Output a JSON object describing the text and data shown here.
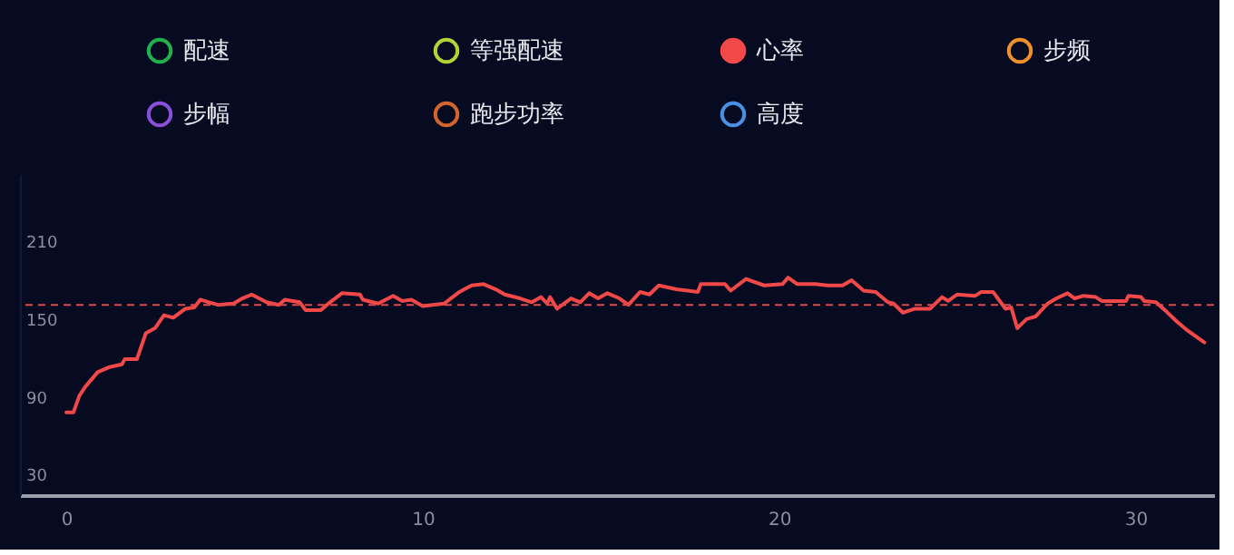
{
  "chart_data": {
    "type": "line",
    "x": [
      0,
      0.2,
      0.37,
      0.54,
      0.88,
      1.22,
      1.56,
      1.64,
      1.98,
      2.23,
      2.49,
      2.74,
      3.0,
      3.34,
      3.59,
      3.76,
      4.0,
      4.26,
      4.69,
      4.94,
      5.2,
      5.62,
      5.96,
      6.13,
      6.55,
      6.71,
      7.14,
      7.4,
      7.73,
      8.24,
      8.32,
      8.75,
      9.17,
      9.43,
      9.68,
      10.0,
      10.6,
      11.03,
      11.37,
      11.71,
      12.05,
      12.3,
      12.73,
      13.06,
      13.32,
      13.49,
      13.57,
      13.77,
      14.16,
      14.42,
      14.67,
      14.92,
      15.18,
      15.52,
      15.77,
      16.1,
      16.36,
      16.62,
      17.12,
      17.72,
      17.8,
      18.48,
      18.64,
      19.07,
      19.58,
      20.09,
      20.25,
      20.51,
      21.02,
      21.36,
      21.78,
      22.03,
      22.37,
      22.71,
      23.05,
      23.21,
      23.47,
      23.81,
      24.23,
      24.57,
      24.74,
      24.99,
      25.5,
      25.67,
      26.0,
      26.35,
      26.51,
      26.68,
      26.94,
      27.19,
      27.53,
      27.78,
      28.09,
      28.29,
      28.54,
      28.88,
      29.05,
      29.73,
      29.8,
      30.15,
      30.24,
      30.57,
      30.82,
      31.16,
      31.42,
      31.67,
      31.93
    ],
    "series": [
      {
        "name": "配速",
        "color": "#22b04a",
        "values": [
          null,
          null,
          null,
          null,
          null,
          null,
          null,
          null,
          null,
          null,
          null,
          null,
          null,
          null,
          null,
          null,
          null,
          null,
          null,
          null,
          null,
          null,
          null,
          null,
          null,
          null,
          null,
          null,
          null,
          null,
          null,
          null,
          null,
          null,
          null,
          null,
          null,
          null,
          null,
          null,
          null,
          null,
          null,
          null,
          null,
          null,
          null,
          null,
          null,
          null,
          null,
          null,
          null,
          null,
          null,
          null,
          null,
          null,
          null,
          null,
          null,
          null,
          null,
          null,
          null,
          null,
          null,
          null,
          null,
          null,
          null,
          null,
          null,
          null,
          null,
          null,
          null,
          null,
          null,
          null,
          null,
          null,
          null,
          null,
          null,
          null,
          null,
          null,
          null,
          null,
          null,
          null,
          null,
          null,
          null,
          null,
          null,
          null,
          null,
          null,
          null,
          null,
          null,
          null,
          null,
          null,
          null
        ]
      },
      {
        "name": "等强配速",
        "color": "#b5d334",
        "values": [
          null,
          null,
          null,
          null,
          null,
          null,
          null,
          null,
          null,
          null,
          null,
          null,
          null,
          null,
          null,
          null,
          null,
          null,
          null,
          null,
          null,
          null,
          null,
          null,
          null,
          null,
          null,
          null,
          null,
          null,
          null,
          null,
          null,
          null,
          null,
          null,
          null,
          null,
          null,
          null,
          null,
          null,
          null,
          null,
          null,
          null,
          null,
          null,
          null,
          null,
          null,
          null,
          null,
          null,
          null,
          null,
          null,
          null,
          null,
          null,
          null,
          null,
          null,
          null,
          null,
          null,
          null,
          null,
          null,
          null,
          null,
          null,
          null,
          null,
          null,
          null,
          null,
          null,
          null,
          null,
          null,
          null,
          null,
          null,
          null,
          null,
          null,
          null,
          null,
          null,
          null,
          null,
          null,
          null,
          null,
          null,
          null,
          null,
          null,
          null,
          null,
          null,
          null,
          null,
          null,
          null,
          null
        ]
      },
      {
        "name": "心率",
        "color": "#f24848",
        "values": [
          78,
          78,
          91,
          98,
          109,
          113,
          115,
          119,
          119,
          139,
          143,
          153,
          151,
          158,
          159,
          165,
          163,
          161,
          162,
          166,
          169,
          163,
          161,
          165,
          163,
          157,
          157,
          163,
          170,
          169,
          165,
          162,
          168,
          164,
          165,
          160,
          162,
          171,
          176,
          177,
          173,
          169,
          166,
          163,
          167,
          162,
          167,
          158,
          166,
          163,
          170,
          166,
          170,
          166,
          161,
          171,
          169,
          176,
          173,
          171,
          177,
          177,
          172,
          181,
          176,
          177,
          182,
          177,
          177,
          176,
          176,
          180,
          172,
          171,
          163,
          162,
          155,
          158,
          158,
          167,
          164,
          169,
          168,
          171,
          171,
          158,
          159,
          143,
          150,
          152,
          162,
          166,
          170,
          166,
          168,
          167,
          164,
          164,
          168,
          167,
          164,
          163,
          157,
          148,
          142,
          137,
          132
        ]
      },
      {
        "name": "步频",
        "color": "#f0902a",
        "values": [
          null,
          null,
          null,
          null,
          null,
          null,
          null,
          null,
          null,
          null,
          null,
          null,
          null,
          null,
          null,
          null,
          null,
          null,
          null,
          null,
          null,
          null,
          null,
          null,
          null,
          null,
          null,
          null,
          null,
          null,
          null,
          null,
          null,
          null,
          null,
          null,
          null,
          null,
          null,
          null,
          null,
          null,
          null,
          null,
          null,
          null,
          null,
          null,
          null,
          null,
          null,
          null,
          null,
          null,
          null,
          null,
          null,
          null,
          null,
          null,
          null,
          null,
          null,
          null,
          null,
          null,
          null,
          null,
          null,
          null,
          null,
          null,
          null,
          null,
          null,
          null,
          null,
          null,
          null,
          null,
          null,
          null,
          null,
          null,
          null,
          null,
          null,
          null,
          null,
          null,
          null,
          null,
          null,
          null,
          null,
          null,
          null,
          null,
          null,
          null,
          null,
          null,
          null,
          null,
          null,
          null,
          null
        ]
      },
      {
        "name": "步幅",
        "color": "#8a4fd8",
        "values": [
          null,
          null,
          null,
          null,
          null,
          null,
          null,
          null,
          null,
          null,
          null,
          null,
          null,
          null,
          null,
          null,
          null,
          null,
          null,
          null,
          null,
          null,
          null,
          null,
          null,
          null,
          null,
          null,
          null,
          null,
          null,
          null,
          null,
          null,
          null,
          null,
          null,
          null,
          null,
          null,
          null,
          null,
          null,
          null,
          null,
          null,
          null,
          null,
          null,
          null,
          null,
          null,
          null,
          null,
          null,
          null,
          null,
          null,
          null,
          null,
          null,
          null,
          null,
          null,
          null,
          null,
          null,
          null,
          null,
          null,
          null,
          null,
          null,
          null,
          null,
          null,
          null,
          null,
          null,
          null,
          null,
          null,
          null,
          null,
          null,
          null,
          null,
          null,
          null,
          null,
          null,
          null,
          null,
          null,
          null,
          null,
          null,
          null,
          null,
          null,
          null,
          null,
          null,
          null,
          null,
          null,
          null
        ]
      },
      {
        "name": "跑步功率",
        "color": "#d2642c",
        "values": [
          null,
          null,
          null,
          null,
          null,
          null,
          null,
          null,
          null,
          null,
          null,
          null,
          null,
          null,
          null,
          null,
          null,
          null,
          null,
          null,
          null,
          null,
          null,
          null,
          null,
          null,
          null,
          null,
          null,
          null,
          null,
          null,
          null,
          null,
          null,
          null,
          null,
          null,
          null,
          null,
          null,
          null,
          null,
          null,
          null,
          null,
          null,
          null,
          null,
          null,
          null,
          null,
          null,
          null,
          null,
          null,
          null,
          null,
          null,
          null,
          null,
          null,
          null,
          null,
          null,
          null,
          null,
          null,
          null,
          null,
          null,
          null,
          null,
          null,
          null,
          null,
          null,
          null,
          null,
          null,
          null,
          null,
          null,
          null,
          null,
          null,
          null,
          null,
          null,
          null,
          null,
          null,
          null,
          null,
          null,
          null,
          null,
          null,
          null,
          null,
          null,
          null,
          null,
          null,
          null,
          null,
          null
        ]
      },
      {
        "name": "高度",
        "color": "#4a90e2",
        "values": [
          null,
          null,
          null,
          null,
          null,
          null,
          null,
          null,
          null,
          null,
          null,
          null,
          null,
          null,
          null,
          null,
          null,
          null,
          null,
          null,
          null,
          null,
          null,
          null,
          null,
          null,
          null,
          null,
          null,
          null,
          null,
          null,
          null,
          null,
          null,
          null,
          null,
          null,
          null,
          null,
          null,
          null,
          null,
          null,
          null,
          null,
          null,
          null,
          null,
          null,
          null,
          null,
          null,
          null,
          null,
          null,
          null,
          null,
          null,
          null,
          null,
          null,
          null,
          null,
          null,
          null,
          null,
          null,
          null,
          null,
          null,
          null,
          null,
          null,
          null,
          null,
          null,
          null,
          null,
          null,
          null,
          null,
          null,
          null,
          null,
          null,
          null,
          null,
          null,
          null,
          null,
          null,
          null,
          null,
          null,
          null,
          null,
          null,
          null,
          null,
          null,
          null,
          null,
          null,
          null,
          null,
          null
        ]
      }
    ],
    "xlim": [
      -1.3,
      32.2
    ],
    "xticks": [
      0,
      10,
      20,
      30
    ],
    "ylim": [
      14,
      262
    ],
    "yticks": [
      30,
      90,
      150,
      210
    ],
    "ref_lines": [
      {
        "axis": "y",
        "value": 161,
        "color": "#e0484a",
        "line_style": "dashed"
      }
    ],
    "grid": false,
    "legend": "top",
    "marker": "none",
    "line_style": "solid"
  }
}
